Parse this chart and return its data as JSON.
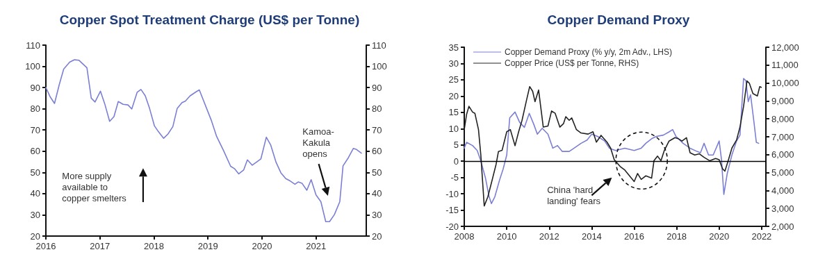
{
  "chart_data": [
    {
      "type": "line",
      "title": "Copper Spot Treatment Charge (US$ per Tonne)",
      "color": "#7b7fd4",
      "line_style": "solid",
      "marker": "none",
      "grid": false,
      "legend": false,
      "x": [
        2016.0,
        2016.08,
        2016.16,
        2016.25,
        2016.33,
        2016.44,
        2016.53,
        2016.61,
        2016.76,
        2016.84,
        2016.91,
        2017.01,
        2017.09,
        2017.18,
        2017.26,
        2017.34,
        2017.43,
        2017.52,
        2017.59,
        2017.69,
        2017.76,
        2017.84,
        2017.92,
        2018.01,
        2018.07,
        2018.18,
        2018.26,
        2018.35,
        2018.43,
        2018.52,
        2018.58,
        2018.67,
        2018.78,
        2018.84,
        2019.06,
        2019.16,
        2019.29,
        2019.42,
        2019.49,
        2019.57,
        2019.66,
        2019.73,
        2019.82,
        2019.98,
        2020.08,
        2020.16,
        2020.26,
        2020.35,
        2020.44,
        2020.52,
        2020.61,
        2020.67,
        2020.74,
        2020.83,
        2020.91,
        2021.0,
        2021.09,
        2021.18,
        2021.25,
        2021.34,
        2021.44,
        2021.5,
        2021.6,
        2021.69,
        2021.75,
        2021.84
      ],
      "values": [
        90,
        85.6,
        82.5,
        91.6,
        98.7,
        102,
        103.1,
        102.9,
        99.3,
        85,
        83.2,
        88.3,
        82.3,
        74.1,
        76.3,
        83.4,
        82.1,
        81.8,
        79.9,
        87.8,
        89.1,
        86.1,
        80.1,
        71.9,
        69.7,
        66.1,
        68.1,
        71.6,
        80.1,
        82.9,
        83.6,
        86.1,
        88,
        88.9,
        74.7,
        67,
        60.2,
        52.9,
        51.8,
        49.3,
        51.1,
        55.9,
        53.4,
        56.4,
        66.6,
        63,
        54.8,
        49.8,
        47.1,
        46,
        44.4,
        45.5,
        44.9,
        41.6,
        46.6,
        39.4,
        36.2,
        26.8,
        26.8,
        30.1,
        36.2,
        53.1,
        57,
        61.3,
        60.8,
        59.1
      ],
      "xlim": [
        2016,
        2021.93
      ],
      "xticks": [
        2016,
        2017,
        2018,
        2019,
        2020,
        2021
      ],
      "ylim": [
        20,
        110
      ],
      "yticks": [
        20,
        30,
        40,
        50,
        60,
        70,
        80,
        90,
        100,
        110
      ],
      "y2lim": [
        20,
        110
      ],
      "y2ticks": [
        20,
        30,
        40,
        50,
        60,
        70,
        80,
        90,
        100,
        110
      ],
      "annotations": [
        "More supply\navailable to\ncopper smelters",
        "Kamoa-\nKakula\nopens"
      ]
    },
    {
      "type": "line",
      "title": "Copper Demand Proxy",
      "line_style": "solid",
      "marker": "none",
      "grid": false,
      "legend": "top left",
      "series": [
        {
          "name": "Copper Demand Proxy (% y/y, 2m Adv., LHS)",
          "color": "#7b7fd4",
          "x": [
            2008.0,
            2008.11,
            2008.39,
            2008.61,
            2008.78,
            2009.0,
            2009.17,
            2009.28,
            2009.44,
            2009.67,
            2009.83,
            2010.0,
            2010.14,
            2010.39,
            2010.61,
            2010.83,
            2011.06,
            2011.28,
            2011.44,
            2011.67,
            2011.94,
            2012.17,
            2012.39,
            2012.61,
            2012.94,
            2013.17,
            2013.5,
            2013.78,
            2014.0,
            2014.28,
            2014.61,
            2014.83,
            2015.12,
            2015.56,
            2016.0,
            2016.33,
            2016.55,
            2016.82,
            2017.04,
            2017.37,
            2017.64,
            2017.81,
            2017.97,
            2018.3,
            2018.63,
            2018.96,
            2019.12,
            2019.29,
            2019.5,
            2019.72,
            2020.0,
            2020.11,
            2020.22,
            2020.38,
            2020.6,
            2020.82,
            2020.98,
            2021.15,
            2021.26,
            2021.37,
            2021.48,
            2021.64,
            2021.75,
            2021.86
          ],
          "values": [
            4.0,
            5.8,
            4.8,
            3.3,
            0.1,
            -5.2,
            -10.9,
            -13,
            -10.9,
            -5.6,
            -2.4,
            1.9,
            13.3,
            15.1,
            11.9,
            10.4,
            14.7,
            11.2,
            8.3,
            10.1,
            8.3,
            4,
            4.8,
            3,
            3,
            4,
            5.5,
            6.5,
            8.3,
            7.6,
            6.2,
            4.0,
            3.3,
            4.0,
            3.3,
            4.0,
            5.5,
            6.9,
            7.6,
            8.0,
            9.0,
            9.7,
            7.6,
            5.5,
            4.0,
            3.0,
            2.6,
            5.5,
            1.9,
            1.9,
            6.2,
            0.5,
            -10.2,
            -3.8,
            1.9,
            6.2,
            8.0,
            25.4,
            24.7,
            18.3,
            20.4,
            11.9,
            5.8,
            5.5
          ]
        },
        {
          "name": "Copper Price (US$ per Tonne, RHS)",
          "color": "#222222",
          "axis": "y2",
          "x": [
            2008.0,
            2008.11,
            2008.22,
            2008.39,
            2008.5,
            2008.67,
            2008.78,
            2008.94,
            2009.11,
            2009.28,
            2009.5,
            2009.61,
            2009.78,
            2010.0,
            2010.17,
            2010.39,
            2010.56,
            2010.72,
            2010.94,
            2011.08,
            2011.22,
            2011.33,
            2011.5,
            2011.72,
            2011.94,
            2012.11,
            2012.28,
            2012.5,
            2012.67,
            2012.78,
            2012.94,
            2013.06,
            2013.28,
            2013.5,
            2013.83,
            2014.06,
            2014.22,
            2014.44,
            2014.72,
            2014.89,
            2015.06,
            2015.34,
            2015.56,
            2015.78,
            2016.0,
            2016.16,
            2016.33,
            2016.55,
            2016.82,
            2016.93,
            2017.1,
            2017.26,
            2017.42,
            2017.64,
            2017.92,
            2018.08,
            2018.25,
            2018.46,
            2018.63,
            2018.85,
            2019.07,
            2019.29,
            2019.56,
            2019.83,
            2020.0,
            2020.16,
            2020.27,
            2020.44,
            2020.6,
            2020.82,
            2020.98,
            2021.15,
            2021.31,
            2021.42,
            2021.59,
            2021.8,
            2021.91,
            2021.98
          ],
          "values": [
            7400,
            8250,
            8700,
            8380,
            8310,
            7400,
            5980,
            3140,
            3650,
            4430,
            5470,
            6180,
            6240,
            7280,
            7400,
            6500,
            7280,
            7920,
            9090,
            9800,
            9540,
            8960,
            9610,
            7540,
            7600,
            8440,
            8310,
            7540,
            7730,
            8120,
            7920,
            8050,
            7400,
            7210,
            7150,
            7280,
            6700,
            7080,
            6700,
            6370,
            5720,
            5340,
            5140,
            4820,
            4500,
            4950,
            4620,
            4820,
            4690,
            5660,
            5920,
            5660,
            6240,
            6760,
            6950,
            6890,
            6760,
            6950,
            6110,
            5980,
            6050,
            5850,
            5660,
            5790,
            5720,
            5210,
            5080,
            5720,
            6370,
            6820,
            7540,
            8700,
            10120,
            9990,
            9410,
            9280,
            9800,
            9760
          ]
        }
      ],
      "xlim": [
        2008,
        2022.2
      ],
      "xticks": [
        2008,
        2010,
        2012,
        2014,
        2016,
        2018,
        2020,
        2022
      ],
      "ylim": [
        -20,
        35
      ],
      "yticks": [
        -20,
        -15,
        -10,
        -5,
        0,
        5,
        10,
        15,
        20,
        25,
        30,
        35
      ],
      "y2lim": [
        2000,
        12000
      ],
      "y2ticks": [
        {
          "value": 2000,
          "label": "2,000"
        },
        {
          "value": 3000,
          "label": "3,000"
        },
        {
          "value": 4000,
          "label": "4,000"
        },
        {
          "value": 5000,
          "label": "5,000"
        },
        {
          "value": 6000,
          "label": "6,000"
        },
        {
          "value": 7000,
          "label": "7,000"
        },
        {
          "value": 8000,
          "label": "8,000"
        },
        {
          "value": 9000,
          "label": "9,000"
        },
        {
          "value": 10000,
          "label": "10,000"
        },
        {
          "value": 11000,
          "label": "11,000"
        },
        {
          "value": 12000,
          "label": "12,000"
        }
      ],
      "ref_lines": [
        {
          "axis": "y",
          "value": 0,
          "color": "#000000"
        }
      ],
      "annotations": [
        "China 'hard\nlanding' fears"
      ]
    }
  ]
}
